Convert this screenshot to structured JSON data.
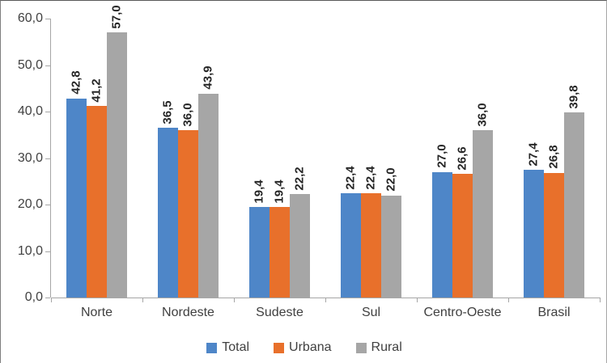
{
  "chart_data": {
    "type": "bar",
    "title": "",
    "xlabel": "",
    "ylabel": "",
    "categories": [
      "Norte",
      "Nordeste",
      "Sudeste",
      "Sul",
      "Centro-Oeste",
      "Brasil"
    ],
    "series": [
      {
        "name": "Total",
        "color": "#4E86C8",
        "values": [
          42.8,
          36.5,
          19.4,
          22.4,
          27.0,
          27.4
        ],
        "labels": [
          "42,8",
          "36,5",
          "19,4",
          "22,4",
          "27,0",
          "27,4"
        ]
      },
      {
        "name": "Urbana",
        "color": "#E8702B",
        "values": [
          41.2,
          36.0,
          19.4,
          22.4,
          26.6,
          26.8
        ],
        "labels": [
          "41,2",
          "36,0",
          "19,4",
          "22,4",
          "26,6",
          "26,8"
        ]
      },
      {
        "name": "Rural",
        "color": "#A6A6A6",
        "values": [
          57.0,
          43.9,
          22.2,
          22.0,
          36.0,
          39.8
        ],
        "labels": [
          "57,0",
          "43,9",
          "22,2",
          "22,0",
          "36,0",
          "39,8"
        ]
      }
    ],
    "ylim": [
      0,
      60
    ],
    "ytick_step": 10,
    "ytick_labels": [
      "0,0",
      "10,0",
      "20,0",
      "30,0",
      "40,0",
      "50,0",
      "60,0"
    ],
    "grid": false,
    "legend_position": "bottom",
    "data_labels": true,
    "data_label_rotation": 90,
    "colors": {
      "axis": "#A6A6A6",
      "tick_text": "#404040",
      "category_text": "#404040",
      "data_label_text": "#262626",
      "legend_text": "#404040",
      "background": "#FFFFFF",
      "frame_border": "#595959"
    }
  }
}
